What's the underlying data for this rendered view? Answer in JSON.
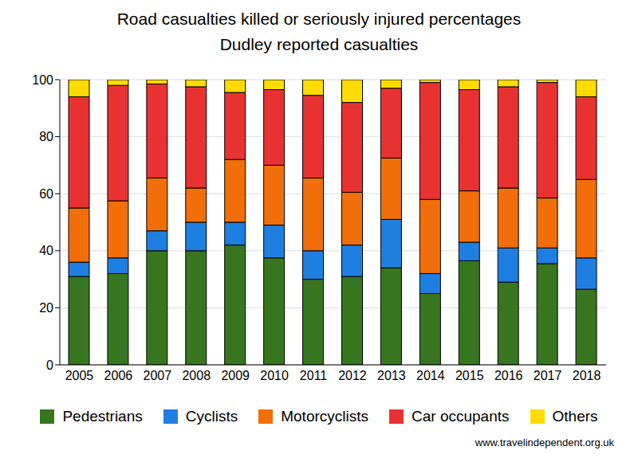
{
  "chart_data": {
    "type": "bar",
    "title": "Road casualties killed or seriously injured percentages",
    "subtitle": "Dudley reported casualties",
    "source": "www.travelindependent.org.uk",
    "categories": [
      "2005",
      "2006",
      "2007",
      "2008",
      "2009",
      "2010",
      "2011",
      "2012",
      "2013",
      "2014",
      "2015",
      "2016",
      "2017",
      "2018"
    ],
    "series": [
      {
        "name": "Pedestrians",
        "color": "#37761f",
        "values": [
          31,
          32,
          40,
          40,
          42,
          37.5,
          30,
          31,
          34,
          25,
          36.5,
          29,
          35.5,
          26.5
        ]
      },
      {
        "name": "Cyclists",
        "color": "#1e7fe0",
        "values": [
          5,
          5.5,
          7,
          10,
          8,
          11.5,
          10,
          11,
          17,
          7,
          6.5,
          12,
          5.5,
          11
        ]
      },
      {
        "name": "Motorcyclists",
        "color": "#f16e0a",
        "values": [
          19,
          20,
          18.5,
          12,
          22,
          21,
          25.5,
          18.5,
          21.5,
          26,
          18,
          21,
          17.5,
          27.5
        ]
      },
      {
        "name": "Car occupants",
        "color": "#e83232",
        "values": [
          39,
          40.5,
          33,
          35.5,
          23.5,
          26.5,
          29,
          31.5,
          24.5,
          41,
          35.5,
          35.5,
          40.5,
          29
        ]
      },
      {
        "name": "Others",
        "color": "#ffdc00",
        "values": [
          6,
          2,
          1.5,
          2.5,
          4.5,
          3.5,
          5.5,
          8,
          3,
          1,
          3.5,
          2.5,
          1,
          6
        ]
      }
    ],
    "ylim": [
      0,
      100
    ],
    "yticks": [
      0,
      20,
      40,
      60,
      80,
      100
    ],
    "grid": true,
    "stacked": true,
    "legend": "bottom"
  }
}
